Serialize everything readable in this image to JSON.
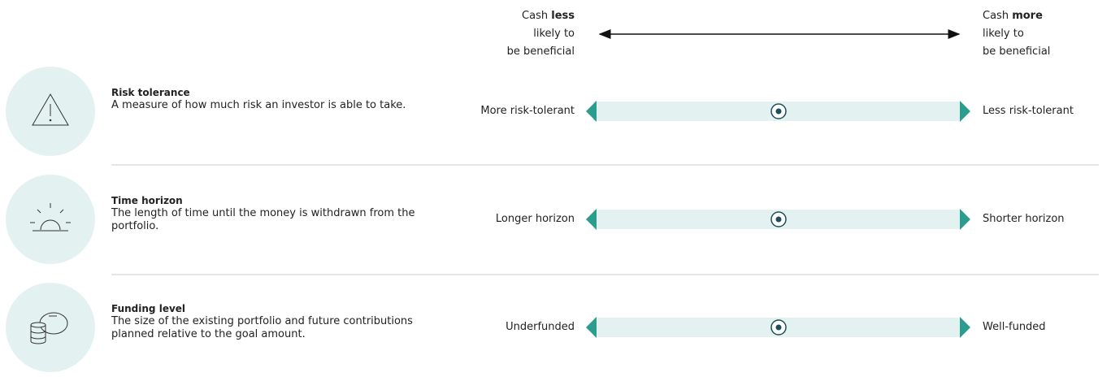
{
  "header": {
    "left": {
      "start": "Cash",
      "emphasis": "less",
      "line2": "likely to",
      "line3": "be beneficial"
    },
    "right": {
      "start": "Cash",
      "emphasis": "more",
      "line2": "likely to",
      "line3": "be beneficial"
    }
  },
  "rows": [
    {
      "title": "Risk tolerance",
      "description": "A measure of how much risk an investor is able to take.",
      "left_label": "More risk-tolerant",
      "right_label": "Less risk-tolerant"
    },
    {
      "title": "Time horizon",
      "description": "The length of time until the money is withdrawn from the portfolio.",
      "left_label": "Longer horizon",
      "right_label": "Shorter horizon"
    },
    {
      "title": "Funding level",
      "description": "The size of the existing portfolio and future contributions planned relative to the goal amount.",
      "left_label": "Underfunded",
      "right_label": "Well-funded"
    }
  ]
}
